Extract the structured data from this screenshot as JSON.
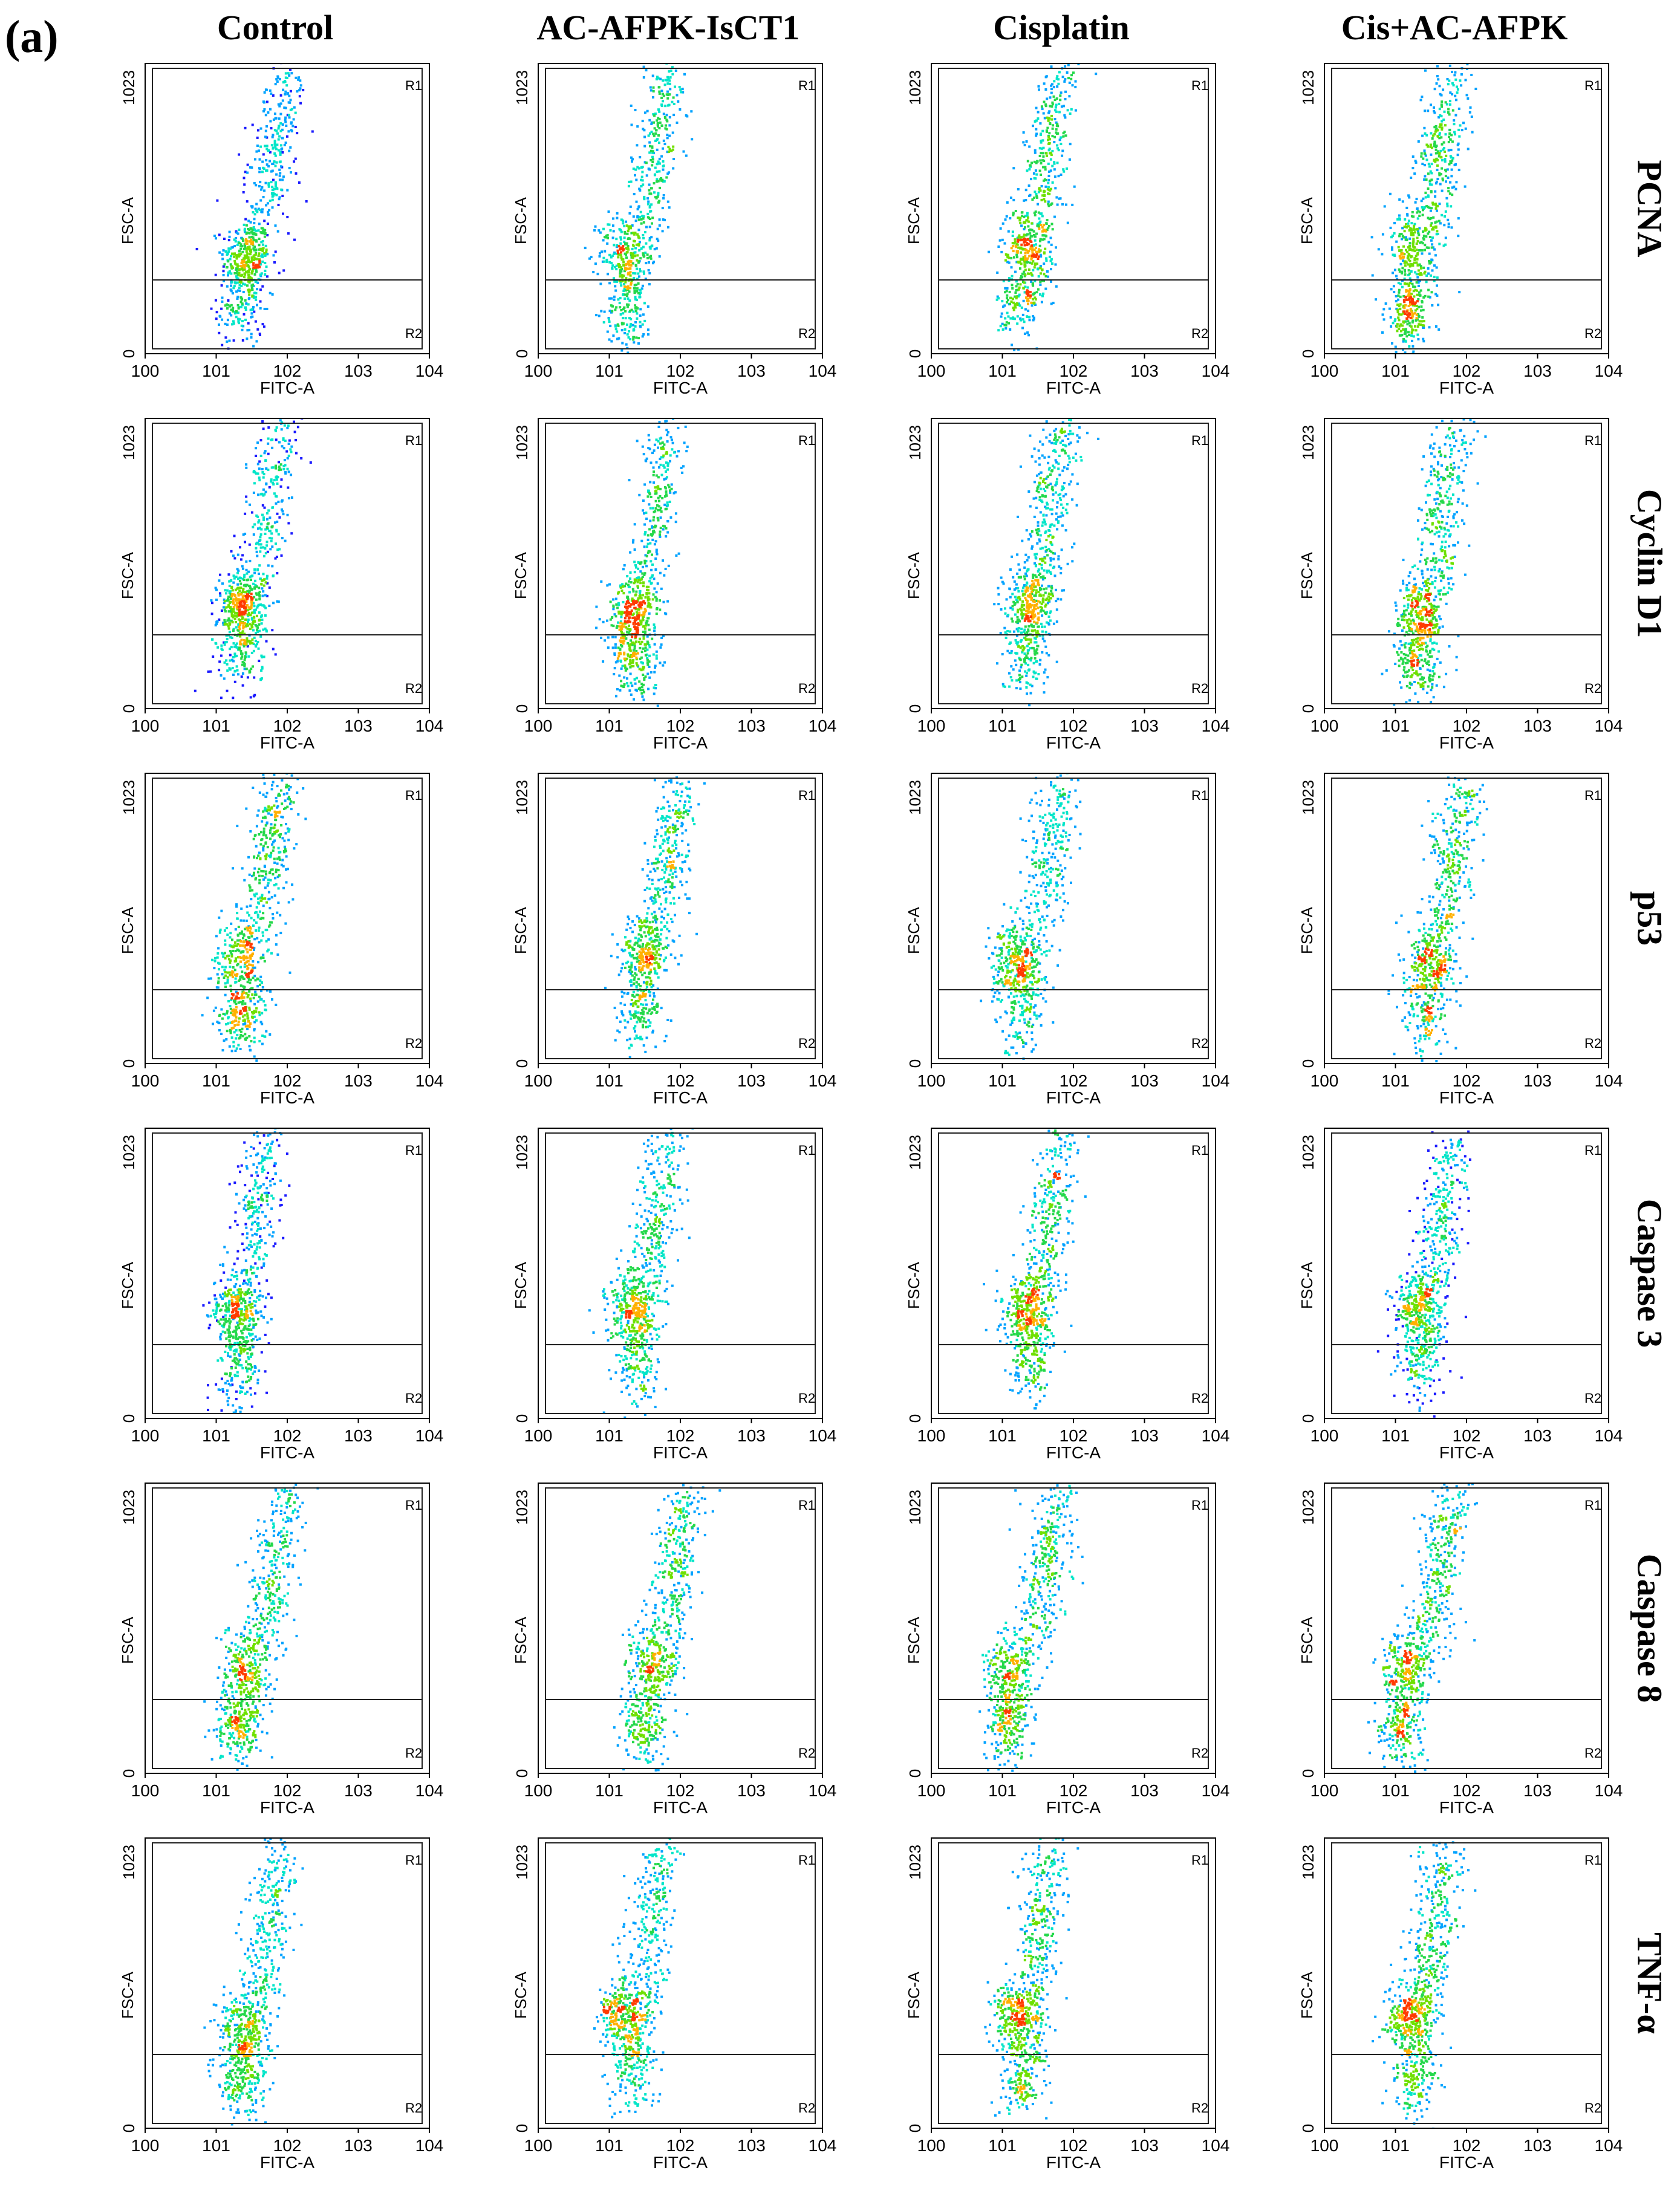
{
  "figure": {
    "panel_label": "(a)"
  },
  "columns": [
    "Control",
    "AC-AFPK-IsCT1",
    "Cisplatin",
    "Cis+AC-AFPK"
  ],
  "rows": [
    "PCNA",
    "Cyclin D1",
    "p53",
    "Caspase 3",
    "Caspase 8",
    "TNF-α"
  ],
  "axes": {
    "xlabel": "FITC-A",
    "ylabel": "FSC-A",
    "x_ticks": [
      "100",
      "101",
      "102",
      "103",
      "104"
    ],
    "y_ticks": [
      "0",
      "1023"
    ],
    "region_labels": [
      "R1",
      "R2"
    ]
  },
  "colors": {
    "density": [
      "#1a1aff",
      "#00a2ff",
      "#00e5c8",
      "#24d84a",
      "#6fe000",
      "#ffb000",
      "#ff3a00"
    ],
    "gate_line": "#222222"
  },
  "chart_data": {
    "type": "scatter",
    "description_type": "flow-cytometry density dot plots, 6 markers x 4 treatments",
    "x_scale": "log",
    "xlim": [
      1,
      10000
    ],
    "ylim": [
      0,
      1023
    ],
    "xlabel": "FITC-A",
    "ylabel": "FSC-A",
    "gates": {
      "R1": {
        "x": [
          1,
          10000
        ],
        "y": [
          0,
          1023
        ]
      },
      "R2": {
        "x": [
          1,
          10000
        ],
        "y": [
          0,
          260
        ]
      }
    },
    "panels": [
      {
        "row": "PCNA",
        "column": "Control",
        "clusters": [
          [
            25,
            340,
            0.3
          ],
          [
            22,
            160,
            0.12
          ],
          [
            60,
            700,
            0.08
          ]
        ]
      },
      {
        "row": "PCNA",
        "column": "AC-AFPK-IsCT1",
        "clusters": [
          [
            15,
            360,
            0.22
          ],
          [
            18,
            150,
            0.14
          ],
          [
            40,
            700,
            0.08
          ]
        ]
      },
      {
        "row": "PCNA",
        "column": "Cisplatin",
        "clusters": [
          [
            20,
            380,
            0.22
          ],
          [
            18,
            160,
            0.12
          ],
          [
            40,
            700,
            0.1
          ]
        ]
      },
      {
        "row": "PCNA",
        "column": "Cis+AC-AFPK",
        "clusters": [
          [
            15,
            400,
            0.18
          ],
          [
            15,
            140,
            0.22
          ],
          [
            40,
            700,
            0.12
          ]
        ]
      },
      {
        "row": "Cyclin D1",
        "column": "Control",
        "clusters": [
          [
            22,
            360,
            0.35
          ],
          [
            20,
            170,
            0.1
          ],
          [
            50,
            700,
            0.06
          ]
        ]
      },
      {
        "row": "Cyclin D1",
        "column": "AC-AFPK-IsCT1",
        "clusters": [
          [
            20,
            340,
            0.3
          ],
          [
            22,
            150,
            0.14
          ],
          [
            40,
            650,
            0.06
          ]
        ]
      },
      {
        "row": "Cyclin D1",
        "column": "Cisplatin",
        "clusters": [
          [
            22,
            370,
            0.3
          ],
          [
            20,
            170,
            0.1
          ],
          [
            40,
            760,
            0.1
          ]
        ]
      },
      {
        "row": "Cyclin D1",
        "column": "Cis+AC-AFPK",
        "clusters": [
          [
            22,
            350,
            0.24
          ],
          [
            20,
            150,
            0.18
          ],
          [
            40,
            700,
            0.08
          ]
        ]
      },
      {
        "row": "p53",
        "column": "Control",
        "clusters": [
          [
            20,
            380,
            0.22
          ],
          [
            22,
            170,
            0.2
          ],
          [
            50,
            760,
            0.1
          ]
        ]
      },
      {
        "row": "p53",
        "column": "AC-AFPK-IsCT1",
        "clusters": [
          [
            30,
            380,
            0.25
          ],
          [
            25,
            160,
            0.1
          ],
          [
            60,
            700,
            0.1
          ]
        ]
      },
      {
        "row": "p53",
        "column": "Cisplatin",
        "clusters": [
          [
            15,
            360,
            0.3
          ],
          [
            18,
            180,
            0.1
          ],
          [
            40,
            700,
            0.08
          ]
        ]
      },
      {
        "row": "p53",
        "column": "Cis+AC-AFPK",
        "clusters": [
          [
            30,
            360,
            0.22
          ],
          [
            25,
            160,
            0.12
          ],
          [
            60,
            720,
            0.1
          ]
        ]
      },
      {
        "row": "Caspase 3",
        "column": "Control",
        "clusters": [
          [
            18,
            380,
            0.3
          ],
          [
            20,
            160,
            0.12
          ],
          [
            30,
            700,
            0.06
          ]
        ]
      },
      {
        "row": "Caspase 3",
        "column": "AC-AFPK-IsCT1",
        "clusters": [
          [
            20,
            380,
            0.3
          ],
          [
            22,
            170,
            0.1
          ],
          [
            40,
            700,
            0.08
          ]
        ]
      },
      {
        "row": "Caspase 3",
        "column": "Cisplatin",
        "clusters": [
          [
            22,
            380,
            0.3
          ],
          [
            22,
            170,
            0.1
          ],
          [
            40,
            700,
            0.08
          ]
        ]
      },
      {
        "row": "Caspase 3",
        "column": "Cis+AC-AFPK",
        "clusters": [
          [
            20,
            380,
            0.3
          ],
          [
            22,
            170,
            0.1
          ],
          [
            40,
            700,
            0.08
          ]
        ]
      },
      {
        "row": "Caspase 8",
        "column": "Control",
        "clusters": [
          [
            25,
            360,
            0.2
          ],
          [
            20,
            160,
            0.2
          ],
          [
            60,
            700,
            0.1
          ]
        ]
      },
      {
        "row": "Caspase 8",
        "column": "AC-AFPK-IsCT1",
        "clusters": [
          [
            40,
            380,
            0.22
          ],
          [
            28,
            160,
            0.16
          ],
          [
            80,
            720,
            0.1
          ]
        ]
      },
      {
        "row": "Caspase 8",
        "column": "Cisplatin",
        "clusters": [
          [
            12,
            380,
            0.22
          ],
          [
            12,
            160,
            0.18
          ],
          [
            40,
            740,
            0.1
          ]
        ]
      },
      {
        "row": "Caspase 8",
        "column": "Cis+AC-AFPK",
        "clusters": [
          [
            12,
            380,
            0.22
          ],
          [
            12,
            160,
            0.18
          ],
          [
            40,
            740,
            0.1
          ]
        ]
      },
      {
        "row": "TNF-α",
        "column": "Control",
        "clusters": [
          [
            22,
            360,
            0.25
          ],
          [
            22,
            160,
            0.18
          ],
          [
            50,
            700,
            0.08
          ]
        ]
      },
      {
        "row": "TNF-α",
        "column": "AC-AFPK-IsCT1",
        "clusters": [
          [
            15,
            390,
            0.3
          ],
          [
            20,
            170,
            0.1
          ],
          [
            30,
            700,
            0.08
          ]
        ]
      },
      {
        "row": "TNF-α",
        "column": "Cisplatin",
        "clusters": [
          [
            15,
            390,
            0.3
          ],
          [
            18,
            160,
            0.12
          ],
          [
            30,
            760,
            0.1
          ]
        ]
      },
      {
        "row": "TNF-α",
        "column": "Cis+AC-AFPK",
        "clusters": [
          [
            15,
            390,
            0.3
          ],
          [
            18,
            160,
            0.12
          ],
          [
            30,
            720,
            0.1
          ]
        ]
      }
    ]
  }
}
